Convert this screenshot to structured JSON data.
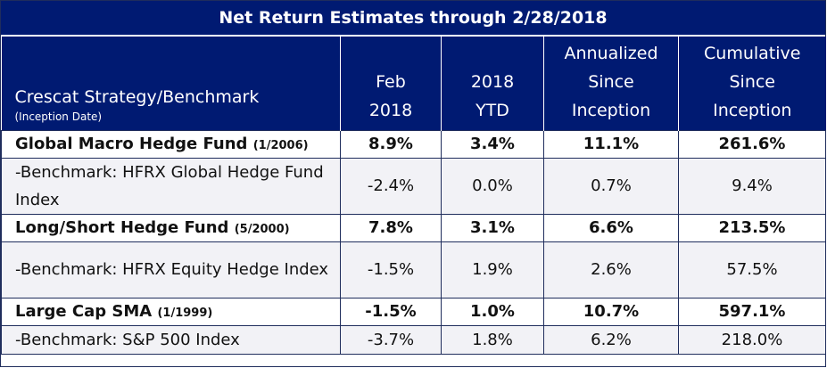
{
  "title": "Net Return Estimates through 2/28/2018",
  "header": {
    "strategy_label": "Crescat Strategy/Benchmark",
    "strategy_sublabel": "(Inception Date)",
    "col1": [
      "Feb",
      "2018"
    ],
    "col2": [
      "2018",
      "YTD"
    ],
    "col3": [
      "Annualized",
      "Since",
      "Inception"
    ],
    "col4": [
      "Cumulative",
      "Since",
      "Inception"
    ]
  },
  "rows": [
    {
      "name": "Global Macro Hedge Fund",
      "inception": "(1/2006)",
      "feb_2018": "8.9%",
      "ytd_2018": "3.4%",
      "annualized": "11.1%",
      "cumulative": "261.6%"
    },
    {
      "name": "-Benchmark: HFRX Global Hedge Fund Index",
      "feb_2018": "-2.4%",
      "ytd_2018": "0.0%",
      "annualized": "0.7%",
      "cumulative": "9.4%"
    },
    {
      "name": "Long/Short Hedge Fund",
      "inception": "(5/2000)",
      "feb_2018": "7.8%",
      "ytd_2018": "3.1%",
      "annualized": "6.6%",
      "cumulative": "213.5%"
    },
    {
      "name": "-Benchmark: HFRX Equity Hedge Index",
      "feb_2018": "-1.5%",
      "ytd_2018": "1.9%",
      "annualized": "2.6%",
      "cumulative": "57.5%"
    },
    {
      "name": "Large Cap SMA",
      "inception": "(1/1999)",
      "feb_2018": "-1.5%",
      "ytd_2018": "1.0%",
      "annualized": "10.7%",
      "cumulative": "597.1%"
    },
    {
      "name": "-Benchmark: S&P 500 Index",
      "feb_2018": "-3.7%",
      "ytd_2018": "1.8%",
      "annualized": "6.2%",
      "cumulative": "218.0%"
    }
  ]
}
